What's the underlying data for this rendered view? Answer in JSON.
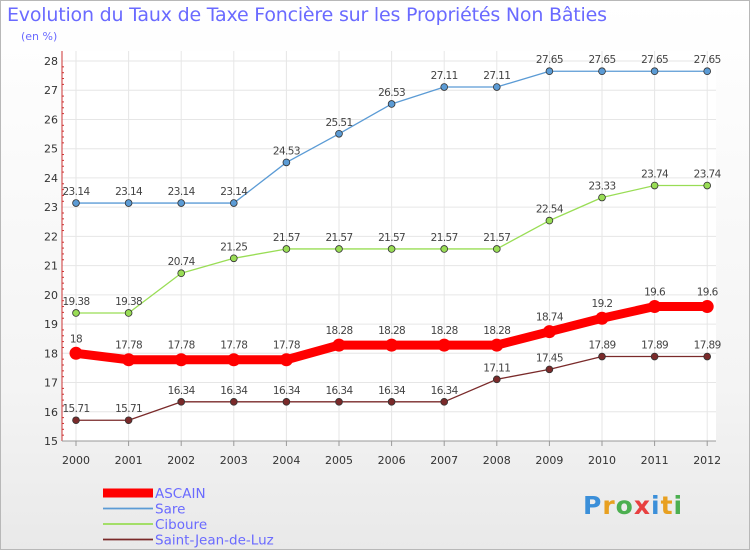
{
  "chart_data": {
    "type": "line",
    "title": "Evolution du Taux de Taxe Foncière sur les Propriétés Non Bâties",
    "ylabel": "(en %)",
    "xlabel": "",
    "x": [
      "2000",
      "2001",
      "2002",
      "2003",
      "2004",
      "2005",
      "2006",
      "2007",
      "2008",
      "2009",
      "2010",
      "2011",
      "2012"
    ],
    "yticks": [
      "15",
      "16",
      "17",
      "18",
      "19",
      "20",
      "21",
      "22",
      "23",
      "24",
      "25",
      "26",
      "27",
      "28"
    ],
    "ylim": [
      15,
      28
    ],
    "legend_position": "bottom-left",
    "series": [
      {
        "name": "ASCAIN",
        "color": "#ff0000",
        "emphasis": true,
        "values": [
          18,
          17.78,
          17.78,
          17.78,
          17.78,
          18.28,
          18.28,
          18.28,
          18.28,
          18.74,
          19.2,
          19.6,
          19.6
        ],
        "labels": [
          "18",
          "17.78",
          "17.78",
          "17.78",
          "17.78",
          "18.28",
          "18.28",
          "18.28",
          "18.28",
          "18.74",
          "19.2",
          "19.6",
          "19.6"
        ]
      },
      {
        "name": "Sare",
        "color": "#5b9bd5",
        "emphasis": false,
        "values": [
          23.14,
          23.14,
          23.14,
          23.14,
          24.53,
          25.51,
          26.53,
          27.11,
          27.11,
          27.65,
          27.65,
          27.65,
          27.65
        ],
        "labels": [
          "23.14",
          "23.14",
          "23.14",
          "23.14",
          "24.53",
          "25.51",
          "26.53",
          "27.11",
          "27.11",
          "27.65",
          "27.65",
          "27.65",
          "27.65"
        ]
      },
      {
        "name": "Ciboure",
        "color": "#99dd55",
        "emphasis": false,
        "values": [
          19.38,
          19.38,
          20.74,
          21.25,
          21.57,
          21.57,
          21.57,
          21.57,
          21.57,
          22.54,
          23.33,
          23.74,
          23.74
        ],
        "labels": [
          "19.38",
          "19.38",
          "20.74",
          "21.25",
          "21.57",
          "21.57",
          "21.57",
          "21.57",
          "21.57",
          "22.54",
          "23.33",
          "23.74",
          "23.74"
        ]
      },
      {
        "name": "Saint-Jean-de-Luz",
        "color": "#7a2a2a",
        "emphasis": false,
        "values": [
          15.71,
          15.71,
          16.34,
          16.34,
          16.34,
          16.34,
          16.34,
          16.34,
          17.11,
          17.45,
          17.89,
          17.89,
          17.89
        ],
        "labels": [
          "15.71",
          "15.71",
          "16.34",
          "16.34",
          "16.34",
          "16.34",
          "16.34",
          "16.34",
          "17.11",
          "17.45",
          "17.89",
          "17.89",
          "17.89"
        ]
      }
    ]
  },
  "brand": {
    "letters": [
      "P",
      "r",
      "o",
      "x",
      "i",
      "t",
      "i"
    ],
    "colors": [
      "#3b8fd9",
      "#e8a020",
      "#4caf50",
      "#e84040",
      "#3b8fd9",
      "#e8a020",
      "#4caf50"
    ]
  }
}
